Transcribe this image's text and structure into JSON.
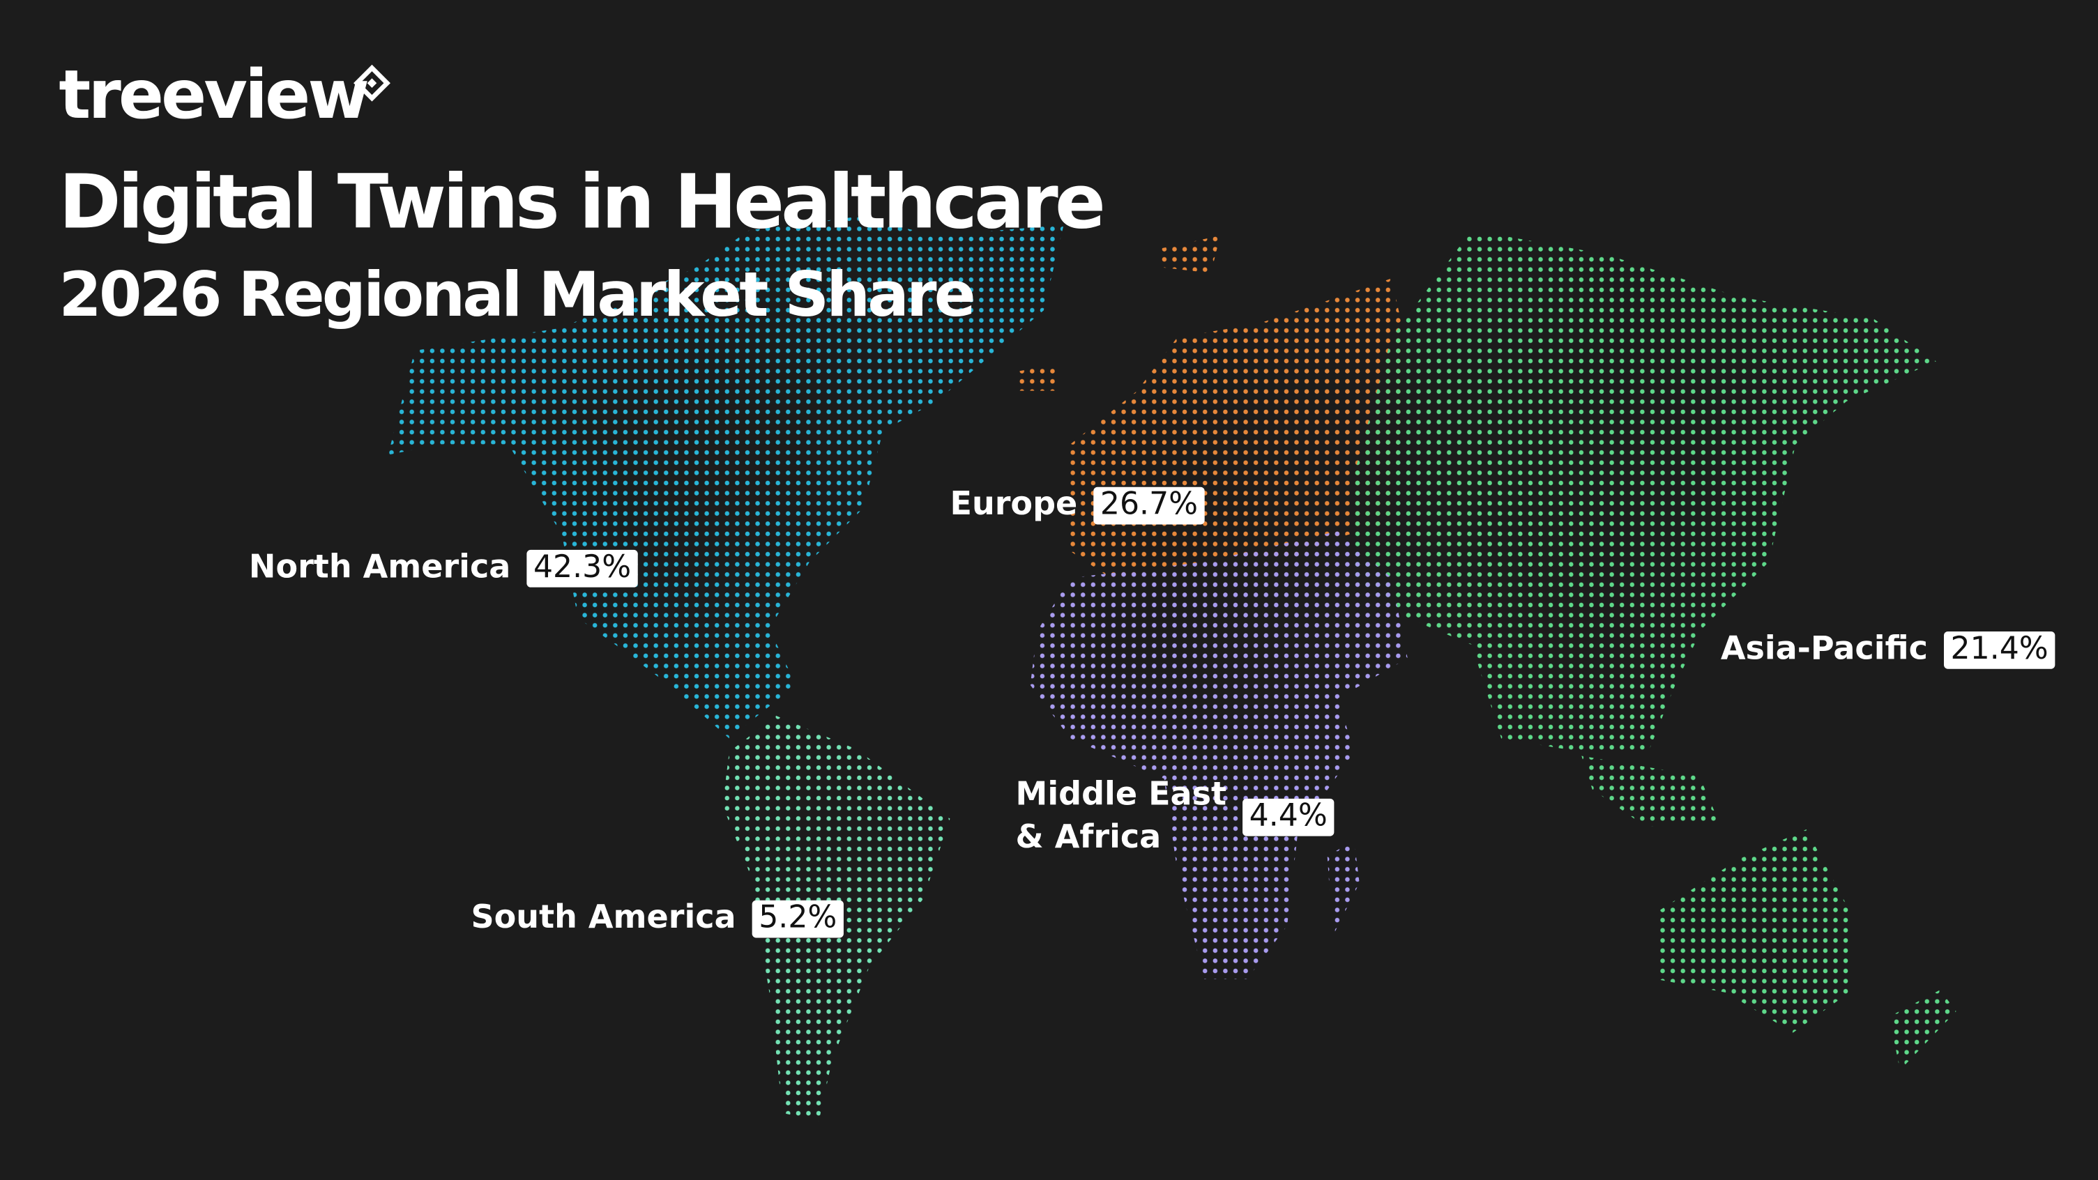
{
  "brand": "treeview",
  "title": "Digital Twins in Healthcare",
  "subtitle": "2026 Regional Market Share",
  "regions": [
    {
      "name_lines": [
        "North America"
      ],
      "share": "42.3%",
      "color": "#29b6d8"
    },
    {
      "name_lines": [
        "Europe"
      ],
      "share": "26.7%",
      "color": "#e8883a"
    },
    {
      "name_lines": [
        "Asia-Pacific"
      ],
      "share": "21.4%",
      "color": "#5ed98a"
    },
    {
      "name_lines": [
        "Middle East",
        "& Africa"
      ],
      "share": "4.4%",
      "color": "#a99cf0"
    },
    {
      "name_lines": [
        "South America"
      ],
      "share": "5.2%",
      "color": "#74e3b5"
    }
  ]
}
